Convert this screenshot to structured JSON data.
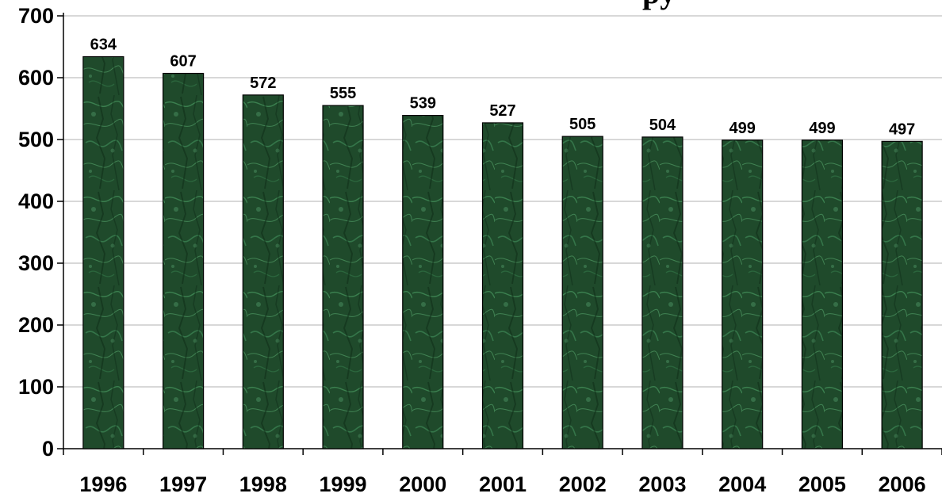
{
  "chart_data": {
    "type": "bar",
    "title": "",
    "xlabel": "",
    "ylabel": "",
    "categories": [
      "1996",
      "1997",
      "1998",
      "1999",
      "2000",
      "2001",
      "2002",
      "2003",
      "2004",
      "2005",
      "2006"
    ],
    "values": [
      634,
      607,
      572,
      555,
      539,
      527,
      505,
      504,
      499,
      499,
      497
    ],
    "ylim": [
      0,
      700
    ],
    "yticks": [
      0,
      100,
      200,
      300,
      400,
      500,
      600,
      700
    ],
    "grid": true,
    "legend": "none",
    "data_labels": true,
    "colors": {
      "bar_fill": "#1f4a2b",
      "bar_texture_light": "#3f8a56",
      "bar_texture_dark": "#0e2a16",
      "bar_stroke": "#000000",
      "grid": "#b0b0b0",
      "axis": "#000000"
    }
  }
}
